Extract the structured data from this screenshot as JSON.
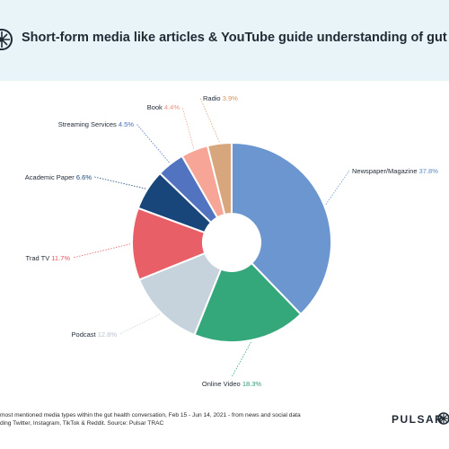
{
  "header": {
    "title": "Short-form media like articles & YouTube guide understanding of gut health"
  },
  "chart_data": {
    "type": "pie",
    "donut": true,
    "title": "Short-form media like articles & YouTube guide understanding of gut health",
    "categories": [
      "Newspaper/Magazine",
      "Online Video",
      "Podcast",
      "Trad TV",
      "Academic Paper",
      "Streaming Services",
      "Book",
      "Radio"
    ],
    "values": [
      37.8,
      18.3,
      12.8,
      11.7,
      6.6,
      4.5,
      4.4,
      3.9
    ],
    "value_labels": [
      "37.8%",
      "18.3%",
      "12.8%",
      "11.7%",
      "6.6%",
      "4.5%",
      "4.4%",
      "3.9%"
    ],
    "colors": [
      "#6b96cf",
      "#34a87b",
      "#c6d2dc",
      "#e85f67",
      "#18467a",
      "#5273bf",
      "#f6a596",
      "#d8a67c"
    ],
    "label_colors": [
      "#5e88c4",
      "#2e9a6f",
      "#b7c2cc",
      "#e0565e",
      "#18467a",
      "#4a6bb5",
      "#e8927f",
      "#d4935f"
    ]
  },
  "footnote": {
    "line1": "most mentioned media types within the gut health conversation, Feb 15 - Jun 14, 2021 - from news and social data",
    "line2": "ding Twitter, Instagram, TikTok & Reddit. Source: Pulsar TRAC"
  },
  "brand": {
    "name": "PULSAR"
  }
}
